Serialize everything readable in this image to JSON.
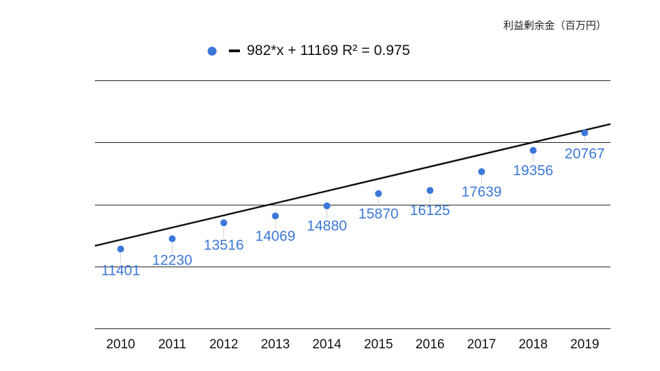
{
  "chart_data": {
    "type": "scatter",
    "unit_label": "利益剰余金（百万円）",
    "x": [
      "2010",
      "2011",
      "2012",
      "2013",
      "2014",
      "2015",
      "2016",
      "2017",
      "2018",
      "2019"
    ],
    "values": [
      11401,
      12230,
      13516,
      14069,
      14880,
      15870,
      16125,
      17639,
      19356,
      20767
    ],
    "data_labels": [
      "11401",
      "12230",
      "13516",
      "14069",
      "14880",
      "15870",
      "16125",
      "17639",
      "19356",
      "20767"
    ],
    "trendline": {
      "type": "linear",
      "slope": 982,
      "intercept": 11169,
      "r_squared": 0.975,
      "label": "982*x + 11169 R² = 0.975",
      "color": "#111111"
    },
    "ylim": [
      5000,
      25000
    ],
    "y_gridlines": [
      5000,
      10000,
      15000,
      20000,
      25000
    ],
    "grid": true,
    "legend_position": "top",
    "point_color": "#3c78d8"
  }
}
